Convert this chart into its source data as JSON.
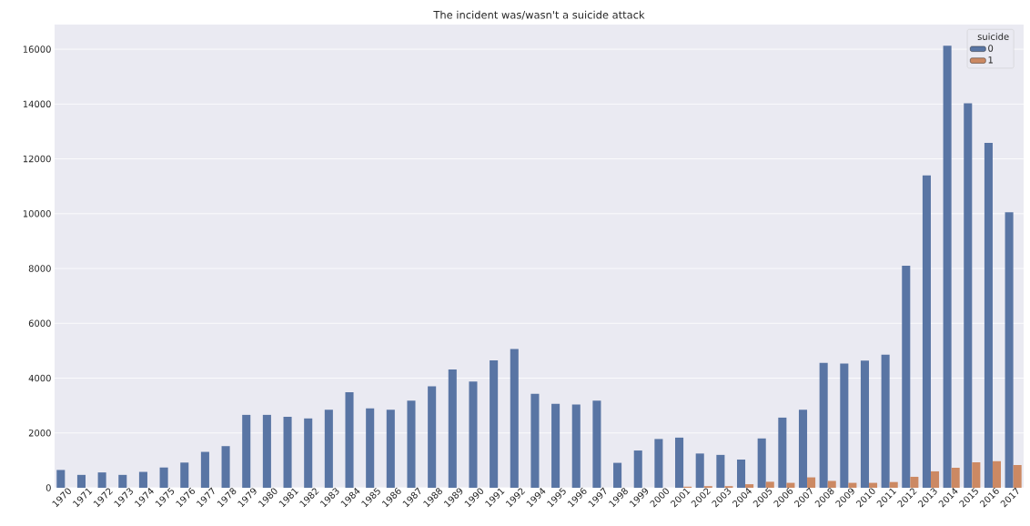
{
  "chart_data": {
    "type": "bar",
    "title": "The incident was/wasn't a suicide attack",
    "categories": [
      "1970",
      "1971",
      "1972",
      "1973",
      "1974",
      "1975",
      "1976",
      "1977",
      "1978",
      "1979",
      "1980",
      "1981",
      "1982",
      "1983",
      "1984",
      "1985",
      "1986",
      "1987",
      "1988",
      "1989",
      "1990",
      "1991",
      "1992",
      "1994",
      "1995",
      "1996",
      "1997",
      "1998",
      "1999",
      "2000",
      "2001",
      "2002",
      "2003",
      "2004",
      "2005",
      "2006",
      "2007",
      "2008",
      "2009",
      "2010",
      "2011",
      "2012",
      "2013",
      "2014",
      "2015",
      "2016",
      "2017"
    ],
    "series": [
      {
        "name": "0",
        "color": "#5975a4",
        "values": [
          650,
          470,
          560,
          470,
          580,
          740,
          920,
          1310,
          1520,
          2660,
          2660,
          2590,
          2530,
          2850,
          3490,
          2900,
          2850,
          3180,
          3700,
          4320,
          3880,
          4650,
          5060,
          3430,
          3060,
          3040,
          3180,
          910,
          1360,
          1780,
          1830,
          1250,
          1200,
          1030,
          1800,
          2560,
          2850,
          4560,
          4530,
          4640,
          4860,
          8100,
          11400,
          16130,
          14030,
          12580,
          10050
        ]
      },
      {
        "name": "1",
        "color": "#cc8963",
        "values": [
          0,
          0,
          0,
          0,
          0,
          0,
          0,
          0,
          0,
          0,
          0,
          0,
          0,
          0,
          0,
          0,
          0,
          0,
          0,
          0,
          0,
          0,
          0,
          0,
          0,
          0,
          0,
          0,
          0,
          0,
          40,
          60,
          60,
          130,
          220,
          180,
          380,
          250,
          180,
          180,
          210,
          400,
          600,
          730,
          930,
          970,
          830
        ]
      }
    ],
    "ylim": [
      0,
      16900
    ],
    "yticks": [
      0,
      2000,
      4000,
      6000,
      8000,
      10000,
      12000,
      14000,
      16000
    ],
    "grid": "y",
    "legend": "top right",
    "legend_title": "suicide"
  }
}
